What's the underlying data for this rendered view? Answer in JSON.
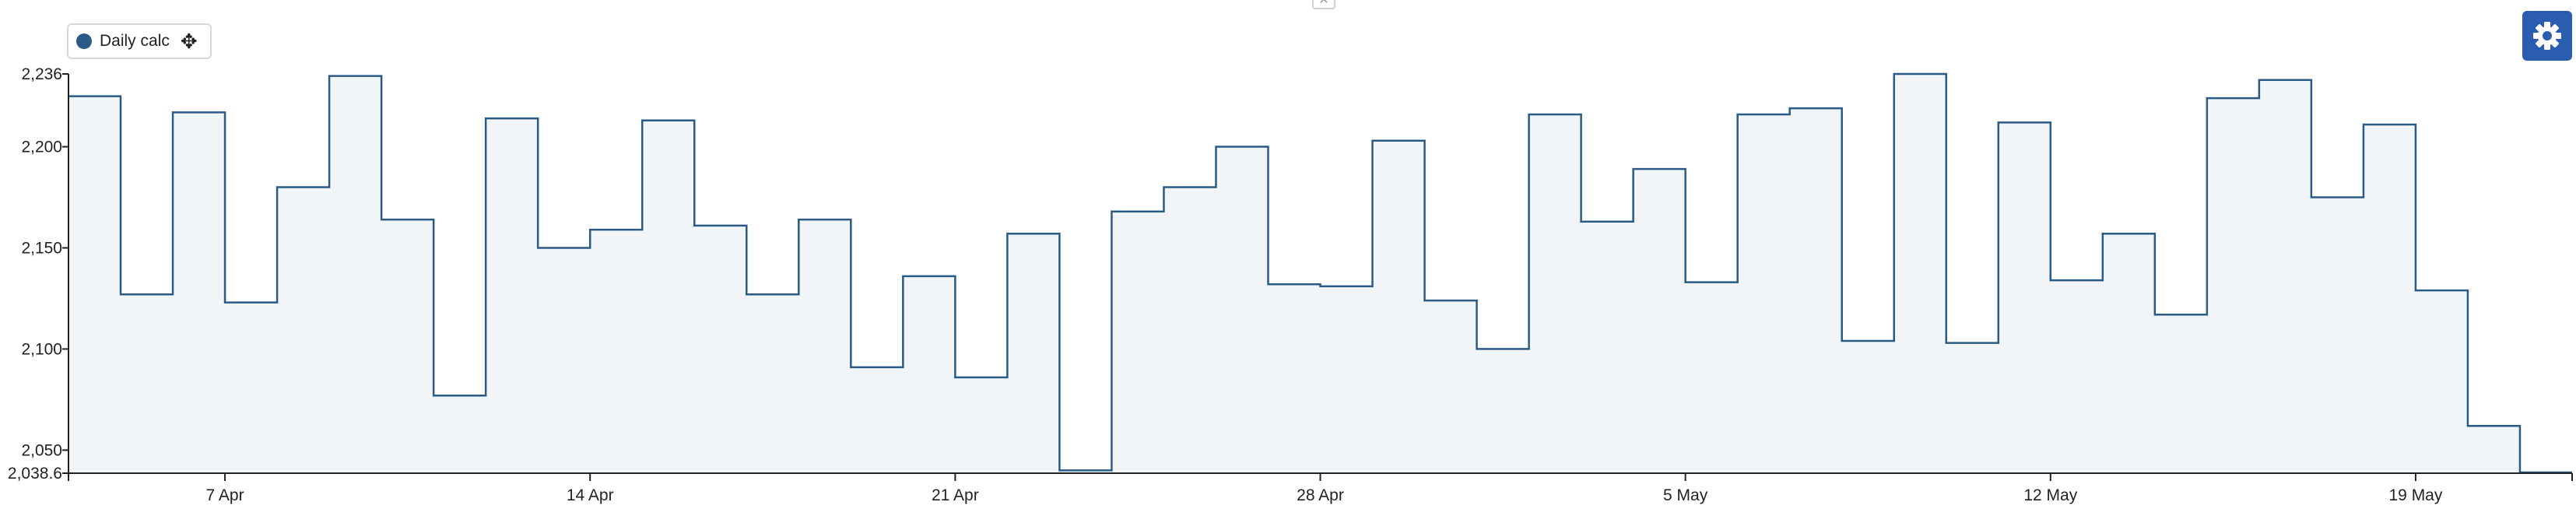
{
  "legend": {
    "label": "Daily calc",
    "color": "#2a5b86",
    "move_icon": "move-arrows-icon"
  },
  "settings": {
    "icon": "gear-icon",
    "color": "#2a5db0"
  },
  "close_icon": "close-icon",
  "colors": {
    "line": "#2a5b86",
    "fill": "#f1f5f8",
    "axis": "#222222"
  },
  "chart_data": {
    "type": "area",
    "step": "step-after",
    "series": [
      {
        "name": "Daily calc",
        "x": [
          "2024-04-04",
          "2024-04-05",
          "2024-04-06",
          "2024-04-07",
          "2024-04-08",
          "2024-04-09",
          "2024-04-10",
          "2024-04-11",
          "2024-04-12",
          "2024-04-13",
          "2024-04-14",
          "2024-04-15",
          "2024-04-16",
          "2024-04-17",
          "2024-04-18",
          "2024-04-19",
          "2024-04-20",
          "2024-04-21",
          "2024-04-22",
          "2024-04-23",
          "2024-04-24",
          "2024-04-25",
          "2024-04-26",
          "2024-04-27",
          "2024-04-28",
          "2024-04-29",
          "2024-04-30",
          "2024-05-01",
          "2024-05-02",
          "2024-05-03",
          "2024-05-04",
          "2024-05-05",
          "2024-05-06",
          "2024-05-07",
          "2024-05-08",
          "2024-05-09",
          "2024-05-10",
          "2024-05-11",
          "2024-05-12",
          "2024-05-13",
          "2024-05-14",
          "2024-05-15",
          "2024-05-16",
          "2024-05-17",
          "2024-05-18",
          "2024-05-19",
          "2024-05-20",
          "2024-05-21"
        ],
        "values": [
          2225,
          2127,
          2217,
          2123,
          2180,
          2235,
          2164,
          2077,
          2214,
          2150,
          2159,
          2213,
          2161,
          2127,
          2164,
          2091,
          2136,
          2086,
          2157,
          2040,
          2168,
          2180,
          2200,
          2132,
          2131,
          2203,
          2124,
          2100,
          2216,
          2163,
          2189,
          2133,
          2216,
          2219,
          2104,
          2236,
          2103,
          2212,
          2134,
          2157,
          2117,
          2224,
          2233,
          2175,
          2211,
          2129,
          2062,
          2039
        ]
      }
    ],
    "xlabel": "",
    "ylabel": "",
    "xlim": [
      "2024-04-04",
      "2024-05-22"
    ],
    "ylim": [
      2038.6,
      2236
    ],
    "yticks": [
      2038.6,
      2050,
      2100,
      2150,
      2200,
      2236
    ],
    "ytick_labels": [
      "2,038.6",
      "2,050",
      "2,100",
      "2,150",
      "2,200",
      "2,236"
    ],
    "xticks": [
      "2024-04-07",
      "2024-04-14",
      "2024-04-21",
      "2024-04-28",
      "2024-05-05",
      "2024-05-12",
      "2024-05-19"
    ],
    "xtick_labels": [
      "7 Apr",
      "14 Apr",
      "21 Apr",
      "28 Apr",
      "5 May",
      "12 May",
      "19 May"
    ],
    "grid": false,
    "legend_position": "top-left"
  }
}
